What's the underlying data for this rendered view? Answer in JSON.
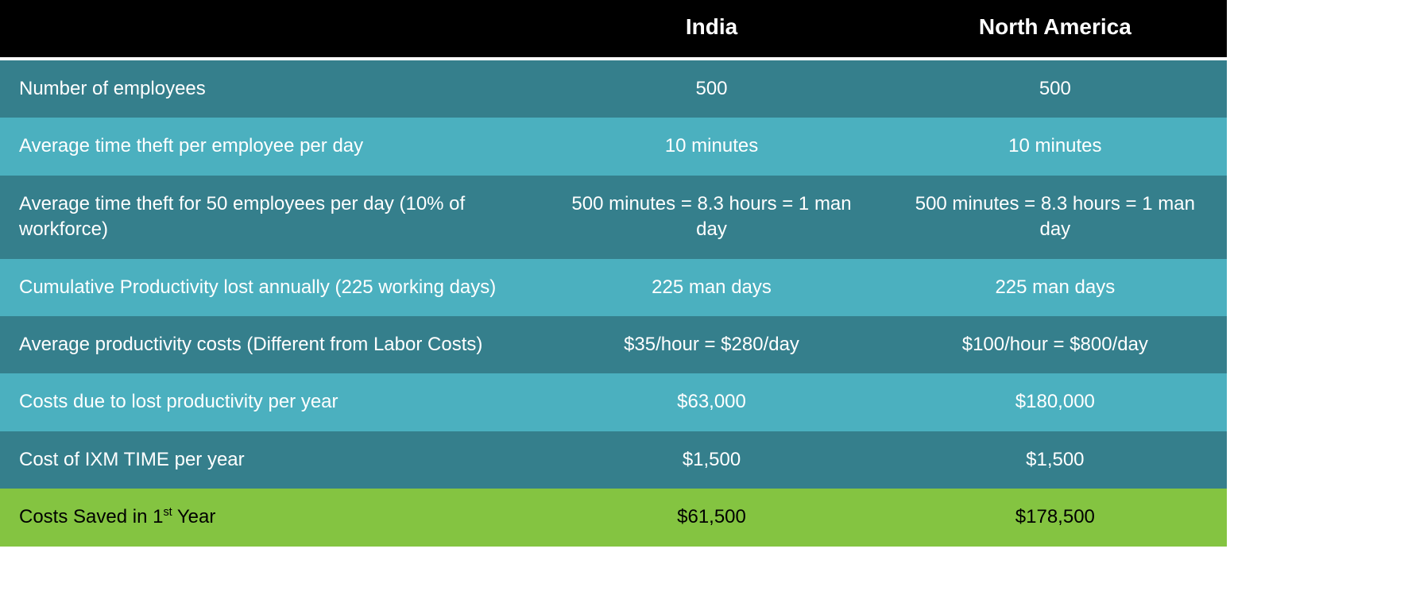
{
  "table": {
    "type": "table",
    "background_color": "#ffffff",
    "header_bg": "#000000",
    "header_text_color": "#ffffff",
    "header_font_size_pt": 21,
    "body_font_size_pt": 18,
    "body_text_color": "#ffffff",
    "row_color_dark": "#357f8c",
    "row_color_light": "#4bb0bf",
    "highlight_row_bg": "#84c441",
    "highlight_row_text_color": "#000000",
    "header_border_bottom_color": "#ffffff",
    "columns": [
      {
        "key": "label",
        "header": "",
        "align": "left",
        "width_pct": 44
      },
      {
        "key": "india",
        "header": "India",
        "align": "center",
        "width_pct": 28
      },
      {
        "key": "north_america",
        "header": "North America",
        "align": "center",
        "width_pct": 28
      }
    ],
    "rows": [
      {
        "shade": "dark",
        "label": "Number of employees",
        "india": "500",
        "north_america": "500"
      },
      {
        "shade": "light",
        "label": "Average time theft per employee per day",
        "india": "10 minutes",
        "north_america": "10 minutes"
      },
      {
        "shade": "dark",
        "label": "Average time theft for 50 employees per day (10% of workforce)",
        "india": "500 minutes = 8.3 hours = 1 man day",
        "north_america": "500 minutes = 8.3 hours = 1 man day"
      },
      {
        "shade": "light",
        "label": "Cumulative Productivity lost annually (225 working days)",
        "india": "225 man days",
        "north_america": "225 man days"
      },
      {
        "shade": "dark",
        "label": "Average productivity costs (Different from Labor Costs)",
        "india": "$35/hour = $280/day",
        "north_america": "$100/hour = $800/day"
      },
      {
        "shade": "light",
        "label": "Costs due to lost productivity per year",
        "india": "$63,000",
        "north_america": "$180,000"
      },
      {
        "shade": "dark",
        "label": "Cost of IXM TIME per year",
        "india": "$1,500",
        "north_america": "$1,500"
      },
      {
        "shade": "highlight",
        "label_prefix": "Costs Saved in 1",
        "label_sup": "st",
        "label_suffix": " Year",
        "india": "$61,500",
        "north_america": "$178,500"
      }
    ]
  }
}
